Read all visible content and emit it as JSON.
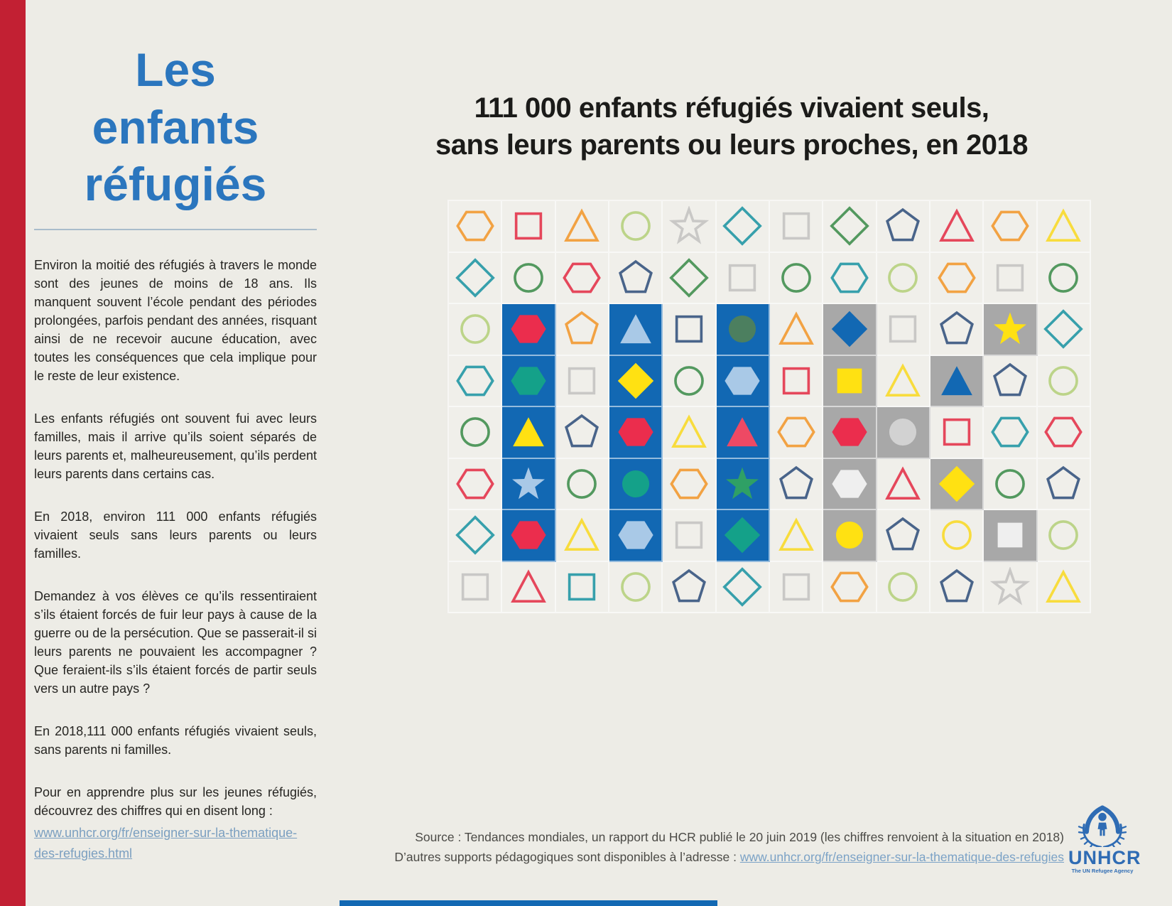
{
  "page": {
    "background": "#EDECE6",
    "red_bar_color": "#C22033",
    "bottom_strip_color": "#1268B3"
  },
  "left": {
    "title_lines": [
      "Les",
      "enfants",
      "réfugiés"
    ],
    "title_color": "#2B76BE",
    "paragraphs": [
      "Environ la moitié des réfugiés à travers le monde sont des jeunes de moins de 18 ans. Ils manquent souvent l’école pendant des périodes prolongées, parfois pendant des années, risquant ainsi de ne recevoir aucune éducation, avec toutes les conséquences que cela implique pour le reste de leur existence.",
      "Les enfants réfugiés ont souvent fui avec leurs familles, mais il arrive qu’ils soient séparés de leurs parents et, malheureusement, qu’ils perdent leurs parents dans certains cas.",
      "En 2018, environ 111 000 enfants réfugiés vivaient seuls sans leurs parents ou leurs familles.",
      "Demandez à vos élèves ce qu’ils ressentiraient s’ils étaient forcés de fuir leur pays à cause de la guerre ou de la persécution. Que se passerait-il si leurs parents ne pouvaient les accompagner ? Que feraient-ils s’ils étaient forcés de partir seuls vers un autre pays ?",
      "En 2018,111 000 enfants réfugiés vivaient seuls, sans parents ni familles.",
      "Pour en apprendre plus sur les jeunes réfugiés, découvrez des chiffres qui en disent long :"
    ],
    "link": "www.unhcr.org/fr/enseigner-sur-la-thematique-des-refugies.html"
  },
  "chart": {
    "type": "pictogram",
    "title_lines": [
      "111 000 enfants réfugiés vivaient seuls,",
      "sans leurs parents ou leurs proches, en 2018"
    ],
    "palette": {
      "orange": "#F2A243",
      "red": "#E5475B",
      "redFill": "#EB2D4D",
      "lightgreen": "#BCD489",
      "grayline": "#C9C8C6",
      "teal": "#37A0AC",
      "green": "#53995F",
      "navy": "#49648A",
      "yellow": "#F8DC3D",
      "yellowFill": "#FFE112",
      "lightblue": "#A9C9E7",
      "darkgreen": "#4C7F5F",
      "emerald": "#14A189",
      "blue": "#1268B3",
      "pink": "#EE4964",
      "lightgray": "#D2D2D2",
      "white": "#EFEFEF",
      "green2": "#2FA065",
      "cellBlue": "#1268B3",
      "cellGray": "#A8A8A8",
      "cellPlain": "#F0EFEA"
    },
    "rows": [
      [
        [
          "hexagon",
          "orange",
          "o",
          "p"
        ],
        [
          "square",
          "red",
          "o",
          "p"
        ],
        [
          "triangle",
          "orange",
          "o",
          "p"
        ],
        [
          "circle",
          "lightgreen",
          "o",
          "p"
        ],
        [
          "star",
          "grayline",
          "o",
          "p"
        ],
        [
          "diamond",
          "teal",
          "o",
          "p"
        ],
        [
          "square",
          "grayline",
          "o",
          "p"
        ],
        [
          "diamond",
          "green",
          "o",
          "p"
        ],
        [
          "pentagon",
          "navy",
          "o",
          "p"
        ],
        [
          "triangle",
          "red",
          "o",
          "p"
        ],
        [
          "hexagon",
          "orange",
          "o",
          "p"
        ],
        [
          "triangle",
          "yellow",
          "o",
          "p"
        ]
      ],
      [
        [
          "diamond",
          "teal",
          "o",
          "p"
        ],
        [
          "circle",
          "green",
          "o",
          "p"
        ],
        [
          "hexagon",
          "red",
          "o",
          "p"
        ],
        [
          "pentagon",
          "navy",
          "o",
          "p"
        ],
        [
          "diamond",
          "green",
          "o",
          "p"
        ],
        [
          "square",
          "grayline",
          "o",
          "p"
        ],
        [
          "circle",
          "green",
          "o",
          "p"
        ],
        [
          "hexagon",
          "teal",
          "o",
          "p"
        ],
        [
          "circle",
          "lightgreen",
          "o",
          "p"
        ],
        [
          "hexagon",
          "orange",
          "o",
          "p"
        ],
        [
          "square",
          "grayline",
          "o",
          "p"
        ],
        [
          "circle",
          "green",
          "o",
          "p"
        ]
      ],
      [
        [
          "circle",
          "lightgreen",
          "o",
          "p"
        ],
        [
          "hexagon",
          "redFill",
          "f",
          "b"
        ],
        [
          "pentagon",
          "orange",
          "o",
          "p"
        ],
        [
          "triangle",
          "lightblue",
          "f",
          "b"
        ],
        [
          "square",
          "navy",
          "o",
          "p"
        ],
        [
          "circle",
          "darkgreen",
          "f",
          "b"
        ],
        [
          "triangle",
          "orange",
          "o",
          "p"
        ],
        [
          "diamond",
          "blue",
          "f",
          "g"
        ],
        [
          "square",
          "grayline",
          "o",
          "p"
        ],
        [
          "pentagon",
          "navy",
          "o",
          "p"
        ],
        [
          "star",
          "yellowFill",
          "f",
          "g"
        ],
        [
          "diamond",
          "teal",
          "o",
          "p"
        ]
      ],
      [
        [
          "hexagon",
          "teal",
          "o",
          "p"
        ],
        [
          "hexagon",
          "emerald",
          "f",
          "b"
        ],
        [
          "square",
          "grayline",
          "o",
          "p"
        ],
        [
          "diamond",
          "yellowFill",
          "f",
          "b"
        ],
        [
          "circle",
          "green",
          "o",
          "p"
        ],
        [
          "hexagon",
          "lightblue",
          "f",
          "b"
        ],
        [
          "square",
          "red",
          "o",
          "p"
        ],
        [
          "square",
          "yellowFill",
          "f",
          "g"
        ],
        [
          "triangle",
          "yellow",
          "o",
          "p"
        ],
        [
          "triangle",
          "blue",
          "f",
          "g"
        ],
        [
          "pentagon",
          "navy",
          "o",
          "p"
        ],
        [
          "circle",
          "lightgreen",
          "o",
          "p"
        ]
      ],
      [
        [
          "circle",
          "green",
          "o",
          "p"
        ],
        [
          "triangle",
          "yellowFill",
          "f",
          "b"
        ],
        [
          "pentagon",
          "navy",
          "o",
          "p"
        ],
        [
          "hexagon",
          "redFill",
          "f",
          "b"
        ],
        [
          "triangle",
          "yellow",
          "o",
          "p"
        ],
        [
          "triangle",
          "pink",
          "f",
          "b"
        ],
        [
          "hexagon",
          "orange",
          "o",
          "p"
        ],
        [
          "hexagon",
          "redFill",
          "f",
          "g"
        ],
        [
          "circle",
          "lightgray",
          "f",
          "g"
        ],
        [
          "square",
          "red",
          "o",
          "p"
        ],
        [
          "hexagon",
          "teal",
          "o",
          "p"
        ],
        [
          "hexagon",
          "red",
          "o",
          "p"
        ]
      ],
      [
        [
          "hexagon",
          "red",
          "o",
          "p"
        ],
        [
          "star",
          "lightblue",
          "f",
          "b"
        ],
        [
          "circle",
          "green",
          "o",
          "p"
        ],
        [
          "circle",
          "emerald",
          "f",
          "b"
        ],
        [
          "hexagon",
          "orange",
          "o",
          "p"
        ],
        [
          "star",
          "green2",
          "f",
          "b"
        ],
        [
          "pentagon",
          "navy",
          "o",
          "p"
        ],
        [
          "hexagon",
          "white",
          "f",
          "g"
        ],
        [
          "triangle",
          "red",
          "o",
          "p"
        ],
        [
          "diamond",
          "yellowFill",
          "f",
          "g"
        ],
        [
          "circle",
          "green",
          "o",
          "p"
        ],
        [
          "pentagon",
          "navy",
          "o",
          "p"
        ]
      ],
      [
        [
          "diamond",
          "teal",
          "o",
          "p"
        ],
        [
          "hexagon",
          "redFill",
          "f",
          "b"
        ],
        [
          "triangle",
          "yellow",
          "o",
          "p"
        ],
        [
          "hexagon",
          "lightblue",
          "f",
          "b"
        ],
        [
          "square",
          "grayline",
          "o",
          "p"
        ],
        [
          "diamond",
          "emerald",
          "f",
          "b"
        ],
        [
          "triangle",
          "yellow",
          "o",
          "p"
        ],
        [
          "circle",
          "yellowFill",
          "f",
          "g"
        ],
        [
          "pentagon",
          "navy",
          "o",
          "p"
        ],
        [
          "circle",
          "yellow",
          "o",
          "p"
        ],
        [
          "square",
          "white",
          "f",
          "g"
        ],
        [
          "circle",
          "lightgreen",
          "o",
          "p"
        ]
      ],
      [
        [
          "square",
          "grayline",
          "o",
          "p"
        ],
        [
          "triangle",
          "red",
          "o",
          "p"
        ],
        [
          "square",
          "teal",
          "o",
          "p"
        ],
        [
          "circle",
          "lightgreen",
          "o",
          "p"
        ],
        [
          "pentagon",
          "navy",
          "o",
          "p"
        ],
        [
          "diamond",
          "teal",
          "o",
          "p"
        ],
        [
          "square",
          "grayline",
          "o",
          "p"
        ],
        [
          "hexagon",
          "orange",
          "o",
          "p"
        ],
        [
          "circle",
          "lightgreen",
          "o",
          "p"
        ],
        [
          "pentagon",
          "navy",
          "o",
          "p"
        ],
        [
          "star",
          "grayline",
          "o",
          "p"
        ],
        [
          "triangle",
          "yellow",
          "o",
          "p"
        ]
      ]
    ]
  },
  "source": {
    "line1": "Source : Tendances mondiales, un rapport du HCR publié le 20 juin 2019 (les chiffres renvoient à la situation en 2018)",
    "line2_prefix": "D’autres supports pédagogiques sont disponibles à l’adresse : ",
    "line2_link": "www.unhcr.org/fr/enseigner-sur-la-thematique-des-refugies"
  },
  "logo": {
    "name": "UNHCR",
    "tagline": "The UN Refugee Agency"
  }
}
